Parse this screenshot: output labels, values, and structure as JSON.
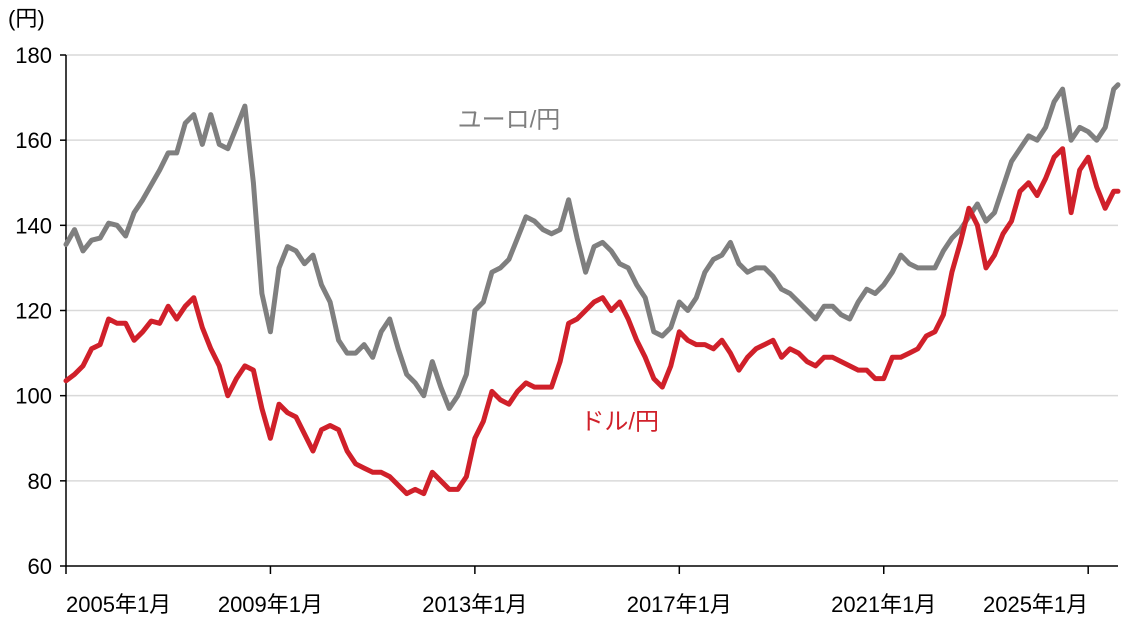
{
  "chart_data": {
    "type": "line",
    "title": "",
    "ylabel": "(円)",
    "xlabel": "",
    "ylim": [
      60,
      180
    ],
    "y_ticks": [
      60,
      80,
      100,
      120,
      140,
      160,
      180
    ],
    "x_ticks": [
      "2005年1月",
      "2009年1月",
      "2013年1月",
      "2017年1月",
      "2021年1月",
      "2025年1月"
    ],
    "xlim": [
      "2005-01",
      "2025-08"
    ],
    "grid": "horizontal",
    "legend": "none (inline labels)",
    "series": [
      {
        "name": "ユーロ/円",
        "color": "#7f7f7f",
        "label_at": {
          "x": "2013-09",
          "y": 163
        },
        "points": [
          [
            "2005-01",
            135.5
          ],
          [
            "2005-03",
            139
          ],
          [
            "2005-05",
            134
          ],
          [
            "2005-07",
            136.5
          ],
          [
            "2005-09",
            137
          ],
          [
            "2005-11",
            140.5
          ],
          [
            "2006-01",
            140
          ],
          [
            "2006-03",
            137.5
          ],
          [
            "2006-05",
            143
          ],
          [
            "2006-07",
            146
          ],
          [
            "2006-09",
            149.5
          ],
          [
            "2006-11",
            153
          ],
          [
            "2007-01",
            157
          ],
          [
            "2007-03",
            157
          ],
          [
            "2007-05",
            164
          ],
          [
            "2007-07",
            166
          ],
          [
            "2007-09",
            159
          ],
          [
            "2007-11",
            166
          ],
          [
            "2008-01",
            159
          ],
          [
            "2008-03",
            158
          ],
          [
            "2008-05",
            163
          ],
          [
            "2008-07",
            168
          ],
          [
            "2008-09",
            150
          ],
          [
            "2008-11",
            124
          ],
          [
            "2009-01",
            115
          ],
          [
            "2009-03",
            130
          ],
          [
            "2009-05",
            135
          ],
          [
            "2009-07",
            134
          ],
          [
            "2009-09",
            131
          ],
          [
            "2009-11",
            133
          ],
          [
            "2010-01",
            126
          ],
          [
            "2010-03",
            122
          ],
          [
            "2010-05",
            113
          ],
          [
            "2010-07",
            110
          ],
          [
            "2010-09",
            110
          ],
          [
            "2010-11",
            112
          ],
          [
            "2011-01",
            109
          ],
          [
            "2011-03",
            115
          ],
          [
            "2011-05",
            118
          ],
          [
            "2011-07",
            111
          ],
          [
            "2011-09",
            105
          ],
          [
            "2011-11",
            103
          ],
          [
            "2012-01",
            100
          ],
          [
            "2012-03",
            108
          ],
          [
            "2012-05",
            102
          ],
          [
            "2012-07",
            97
          ],
          [
            "2012-09",
            100
          ],
          [
            "2012-11",
            105
          ],
          [
            "2013-01",
            120
          ],
          [
            "2013-03",
            122
          ],
          [
            "2013-05",
            129
          ],
          [
            "2013-07",
            130
          ],
          [
            "2013-09",
            132
          ],
          [
            "2013-11",
            137
          ],
          [
            "2014-01",
            142
          ],
          [
            "2014-03",
            141
          ],
          [
            "2014-05",
            139
          ],
          [
            "2014-07",
            138
          ],
          [
            "2014-09",
            139
          ],
          [
            "2014-11",
            146
          ],
          [
            "2015-01",
            137
          ],
          [
            "2015-03",
            129
          ],
          [
            "2015-05",
            135
          ],
          [
            "2015-07",
            136
          ],
          [
            "2015-09",
            134
          ],
          [
            "2015-11",
            131
          ],
          [
            "2016-01",
            130
          ],
          [
            "2016-03",
            126
          ],
          [
            "2016-05",
            123
          ],
          [
            "2016-07",
            115
          ],
          [
            "2016-09",
            114
          ],
          [
            "2016-11",
            116
          ],
          [
            "2017-01",
            122
          ],
          [
            "2017-03",
            120
          ],
          [
            "2017-05",
            123
          ],
          [
            "2017-07",
            129
          ],
          [
            "2017-09",
            132
          ],
          [
            "2017-11",
            133
          ],
          [
            "2018-01",
            136
          ],
          [
            "2018-03",
            131
          ],
          [
            "2018-05",
            129
          ],
          [
            "2018-07",
            130
          ],
          [
            "2018-09",
            130
          ],
          [
            "2018-11",
            128
          ],
          [
            "2019-01",
            125
          ],
          [
            "2019-03",
            124
          ],
          [
            "2019-05",
            122
          ],
          [
            "2019-07",
            120
          ],
          [
            "2019-09",
            118
          ],
          [
            "2019-11",
            121
          ],
          [
            "2020-01",
            121
          ],
          [
            "2020-03",
            119
          ],
          [
            "2020-05",
            118
          ],
          [
            "2020-07",
            122
          ],
          [
            "2020-09",
            125
          ],
          [
            "2020-11",
            124
          ],
          [
            "2021-01",
            126
          ],
          [
            "2021-03",
            129
          ],
          [
            "2021-05",
            133
          ],
          [
            "2021-07",
            131
          ],
          [
            "2021-09",
            130
          ],
          [
            "2021-11",
            130
          ],
          [
            "2022-01",
            130
          ],
          [
            "2022-03",
            134
          ],
          [
            "2022-05",
            137
          ],
          [
            "2022-07",
            139
          ],
          [
            "2022-09",
            142
          ],
          [
            "2022-11",
            145
          ],
          [
            "2023-01",
            141
          ],
          [
            "2023-03",
            143
          ],
          [
            "2023-05",
            149
          ],
          [
            "2023-07",
            155
          ],
          [
            "2023-09",
            158
          ],
          [
            "2023-11",
            161
          ],
          [
            "2024-01",
            160
          ],
          [
            "2024-03",
            163
          ],
          [
            "2024-05",
            169
          ],
          [
            "2024-07",
            172
          ],
          [
            "2024-09",
            160
          ],
          [
            "2024-11",
            163
          ],
          [
            "2025-01",
            162
          ],
          [
            "2025-03",
            160
          ],
          [
            "2025-05",
            163
          ],
          [
            "2025-07",
            172
          ],
          [
            "2025-08",
            173
          ]
        ]
      },
      {
        "name": "ドル/円",
        "color": "#d0202a",
        "label_at": {
          "x": "2015-11",
          "y": 92
        },
        "points": [
          [
            "2005-01",
            103.5
          ],
          [
            "2005-03",
            105
          ],
          [
            "2005-05",
            107
          ],
          [
            "2005-07",
            111
          ],
          [
            "2005-09",
            112
          ],
          [
            "2005-11",
            118
          ],
          [
            "2006-01",
            117
          ],
          [
            "2006-03",
            117
          ],
          [
            "2006-05",
            113
          ],
          [
            "2006-07",
            115
          ],
          [
            "2006-09",
            117.5
          ],
          [
            "2006-11",
            117
          ],
          [
            "2007-01",
            121
          ],
          [
            "2007-03",
            118
          ],
          [
            "2007-05",
            121
          ],
          [
            "2007-07",
            123
          ],
          [
            "2007-09",
            116
          ],
          [
            "2007-11",
            111
          ],
          [
            "2008-01",
            107
          ],
          [
            "2008-03",
            100
          ],
          [
            "2008-05",
            104
          ],
          [
            "2008-07",
            107
          ],
          [
            "2008-09",
            106
          ],
          [
            "2008-11",
            97
          ],
          [
            "2009-01",
            90
          ],
          [
            "2009-03",
            98
          ],
          [
            "2009-05",
            96
          ],
          [
            "2009-07",
            95
          ],
          [
            "2009-09",
            91
          ],
          [
            "2009-11",
            87
          ],
          [
            "2010-01",
            92
          ],
          [
            "2010-03",
            93
          ],
          [
            "2010-05",
            92
          ],
          [
            "2010-07",
            87
          ],
          [
            "2010-09",
            84
          ],
          [
            "2010-11",
            83
          ],
          [
            "2011-01",
            82
          ],
          [
            "2011-03",
            82
          ],
          [
            "2011-05",
            81
          ],
          [
            "2011-07",
            79
          ],
          [
            "2011-09",
            77
          ],
          [
            "2011-11",
            78
          ],
          [
            "2012-01",
            77
          ],
          [
            "2012-03",
            82
          ],
          [
            "2012-05",
            80
          ],
          [
            "2012-07",
            78
          ],
          [
            "2012-09",
            78
          ],
          [
            "2012-11",
            81
          ],
          [
            "2013-01",
            90
          ],
          [
            "2013-03",
            94
          ],
          [
            "2013-05",
            101
          ],
          [
            "2013-07",
            99
          ],
          [
            "2013-09",
            98
          ],
          [
            "2013-11",
            101
          ],
          [
            "2014-01",
            103
          ],
          [
            "2014-03",
            102
          ],
          [
            "2014-05",
            102
          ],
          [
            "2014-07",
            102
          ],
          [
            "2014-09",
            108
          ],
          [
            "2014-11",
            117
          ],
          [
            "2015-01",
            118
          ],
          [
            "2015-03",
            120
          ],
          [
            "2015-05",
            122
          ],
          [
            "2015-07",
            123
          ],
          [
            "2015-09",
            120
          ],
          [
            "2015-11",
            122
          ],
          [
            "2016-01",
            118
          ],
          [
            "2016-03",
            113
          ],
          [
            "2016-05",
            109
          ],
          [
            "2016-07",
            104
          ],
          [
            "2016-09",
            102
          ],
          [
            "2016-11",
            107
          ],
          [
            "2017-01",
            115
          ],
          [
            "2017-03",
            113
          ],
          [
            "2017-05",
            112
          ],
          [
            "2017-07",
            112
          ],
          [
            "2017-09",
            111
          ],
          [
            "2017-11",
            113
          ],
          [
            "2018-01",
            110
          ],
          [
            "2018-03",
            106
          ],
          [
            "2018-05",
            109
          ],
          [
            "2018-07",
            111
          ],
          [
            "2018-09",
            112
          ],
          [
            "2018-11",
            113
          ],
          [
            "2019-01",
            109
          ],
          [
            "2019-03",
            111
          ],
          [
            "2019-05",
            110
          ],
          [
            "2019-07",
            108
          ],
          [
            "2019-09",
            107
          ],
          [
            "2019-11",
            109
          ],
          [
            "2020-01",
            109
          ],
          [
            "2020-03",
            108
          ],
          [
            "2020-05",
            107
          ],
          [
            "2020-07",
            106
          ],
          [
            "2020-09",
            106
          ],
          [
            "2020-11",
            104
          ],
          [
            "2021-01",
            104
          ],
          [
            "2021-03",
            109
          ],
          [
            "2021-05",
            109
          ],
          [
            "2021-07",
            110
          ],
          [
            "2021-09",
            111
          ],
          [
            "2021-11",
            114
          ],
          [
            "2022-01",
            115
          ],
          [
            "2022-03",
            119
          ],
          [
            "2022-05",
            129
          ],
          [
            "2022-07",
            136
          ],
          [
            "2022-09",
            144
          ],
          [
            "2022-11",
            140
          ],
          [
            "2023-01",
            130
          ],
          [
            "2023-03",
            133
          ],
          [
            "2023-05",
            138
          ],
          [
            "2023-07",
            141
          ],
          [
            "2023-09",
            148
          ],
          [
            "2023-11",
            150
          ],
          [
            "2024-01",
            147
          ],
          [
            "2024-03",
            151
          ],
          [
            "2024-05",
            156
          ],
          [
            "2024-07",
            158
          ],
          [
            "2024-09",
            143
          ],
          [
            "2024-11",
            153
          ],
          [
            "2025-01",
            156
          ],
          [
            "2025-03",
            149
          ],
          [
            "2025-05",
            144
          ],
          [
            "2025-07",
            148
          ],
          [
            "2025-08",
            148
          ]
        ]
      }
    ]
  }
}
